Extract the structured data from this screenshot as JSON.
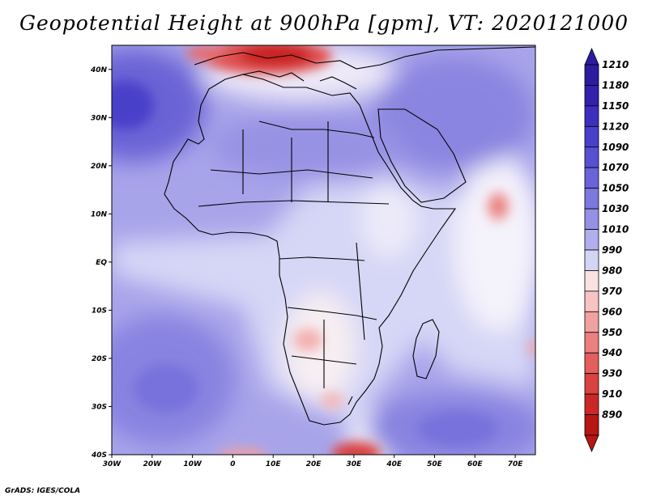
{
  "title": "Geopotential Height at 900hPa [gpm], VT: 2020121000",
  "credit": "GrADS: IGES/COLA",
  "map": {
    "lon_range": [
      -30,
      75
    ],
    "lat_range": [
      -40,
      45
    ],
    "lat_labels": [
      "40N",
      "30N",
      "20N",
      "10N",
      "EQ",
      "10S",
      "20S",
      "30S",
      "40S"
    ],
    "lon_labels": [
      "30W",
      "20W",
      "10W",
      "0",
      "10E",
      "20E",
      "30E",
      "40E",
      "50E",
      "60E",
      "70E"
    ]
  },
  "colorbar": {
    "levels": [
      "1210",
      "1180",
      "1150",
      "1120",
      "1090",
      "1070",
      "1050",
      "1030",
      "1010",
      "990",
      "980",
      "970",
      "960",
      "950",
      "940",
      "930",
      "910",
      "890"
    ],
    "colors": [
      "#2b1ca0",
      "#3320ad",
      "#3d2fbd",
      "#4a3fca",
      "#5850d2",
      "#6a63d9",
      "#7d78df",
      "#9591e5",
      "#b0aeec",
      "#d4d4f5",
      "#fbe2e2",
      "#f7c3c3",
      "#f2a1a1",
      "#ec7f7f",
      "#e45e5e",
      "#da4141",
      "#ca2828",
      "#b81515"
    ]
  }
}
